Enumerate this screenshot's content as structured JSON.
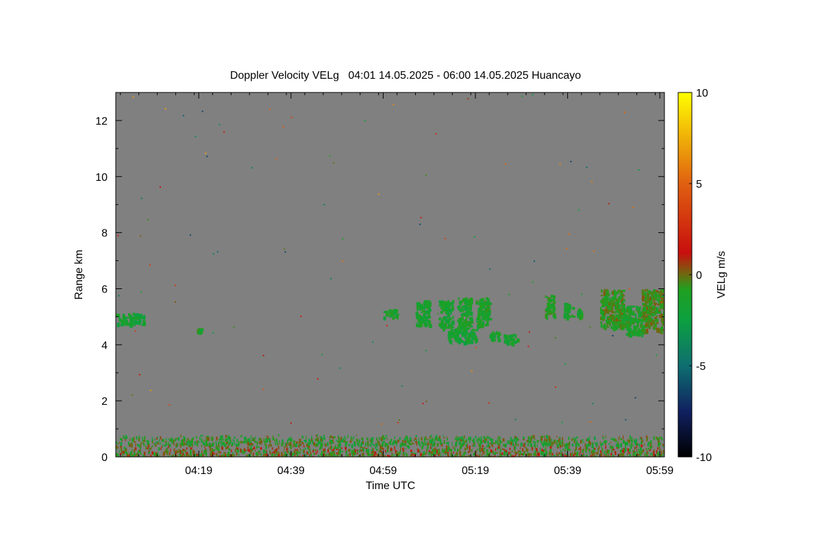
{
  "chart_data": {
    "type": "heatmap",
    "title": "Doppler Velocity VELg   04:01 14.05.2025 - 06:00 14.05.2025 Huancayo",
    "xlabel": "Time UTC",
    "ylabel": "Range km",
    "x_range_minutes": [
      241,
      360
    ],
    "y_range_km": [
      0,
      13
    ],
    "x_ticks": [
      {
        "label": "04:19",
        "minutes": 259
      },
      {
        "label": "04:39",
        "minutes": 279
      },
      {
        "label": "04:59",
        "minutes": 299
      },
      {
        "label": "05:19",
        "minutes": 319
      },
      {
        "label": "05:39",
        "minutes": 339
      },
      {
        "label": "05:59",
        "minutes": 359
      }
    ],
    "y_ticks": [
      0,
      2,
      4,
      6,
      8,
      10,
      12
    ],
    "background_color": "#808080",
    "colorbar": {
      "label": "VELg m/s",
      "min": -10,
      "max": 10,
      "ticks": [
        10,
        5,
        0,
        -5,
        -10
      ],
      "stops": [
        {
          "v": -10,
          "color": "#000000"
        },
        {
          "v": -7.5,
          "color": "#102060"
        },
        {
          "v": -5,
          "color": "#0e6e70"
        },
        {
          "v": -2.5,
          "color": "#0ca040"
        },
        {
          "v": -0.8,
          "color": "#20a020"
        },
        {
          "v": 0,
          "color": "#6e6a10"
        },
        {
          "v": 1.2,
          "color": "#c80e0e"
        },
        {
          "v": 5,
          "color": "#e06010"
        },
        {
          "v": 10,
          "color": "#ffff00"
        }
      ]
    },
    "echo_regions": [
      {
        "t0": 241,
        "t1": 247,
        "r0": 4.75,
        "r1": 5.15,
        "v": -1.8
      },
      {
        "t0": 258.5,
        "t1": 259.5,
        "r0": 4.5,
        "r1": 4.6,
        "v": -1.2
      },
      {
        "t0": 299,
        "t1": 302,
        "r0": 5.0,
        "r1": 5.3,
        "v": -1.5
      },
      {
        "t0": 306,
        "t1": 309,
        "r0": 4.7,
        "r1": 5.6,
        "v": -1.5
      },
      {
        "t0": 311,
        "t1": 314,
        "r0": 4.6,
        "r1": 5.6,
        "v": -1.6
      },
      {
        "t0": 313,
        "t1": 319,
        "r0": 4.1,
        "r1": 4.6,
        "v": -1.8
      },
      {
        "t0": 315,
        "t1": 318,
        "r0": 4.6,
        "r1": 5.7,
        "v": -1.4
      },
      {
        "t0": 319,
        "t1": 322,
        "r0": 4.7,
        "r1": 5.7,
        "v": -1.2
      },
      {
        "t0": 322,
        "t1": 324,
        "r0": 4.2,
        "r1": 4.5,
        "v": -1.6
      },
      {
        "t0": 325,
        "t1": 328,
        "r0": 4.1,
        "r1": 4.4,
        "v": -1.6
      },
      {
        "t0": 334,
        "t1": 336,
        "r0": 5.0,
        "r1": 5.8,
        "v": -1.0
      },
      {
        "t0": 338,
        "t1": 340,
        "r0": 5.0,
        "r1": 5.5,
        "v": -1.4
      },
      {
        "t0": 341,
        "t1": 342,
        "r0": 5.0,
        "r1": 5.3,
        "v": -1.4
      },
      {
        "t0": 346,
        "t1": 351,
        "r0": 4.6,
        "r1": 6.0,
        "v": -0.6
      },
      {
        "t0": 351,
        "t1": 355,
        "r0": 4.4,
        "r1": 5.4,
        "v": -1.2
      },
      {
        "t0": 355,
        "t1": 360,
        "r0": 4.5,
        "r1": 6.0,
        "v": -0.4
      },
      {
        "t0": 241,
        "t1": 360,
        "r0": 0.0,
        "r1": 0.45,
        "v": -0.3
      },
      {
        "t0": 241,
        "t1": 360,
        "r0": 0.45,
        "r1": 0.8,
        "v": -1.0
      }
    ]
  }
}
